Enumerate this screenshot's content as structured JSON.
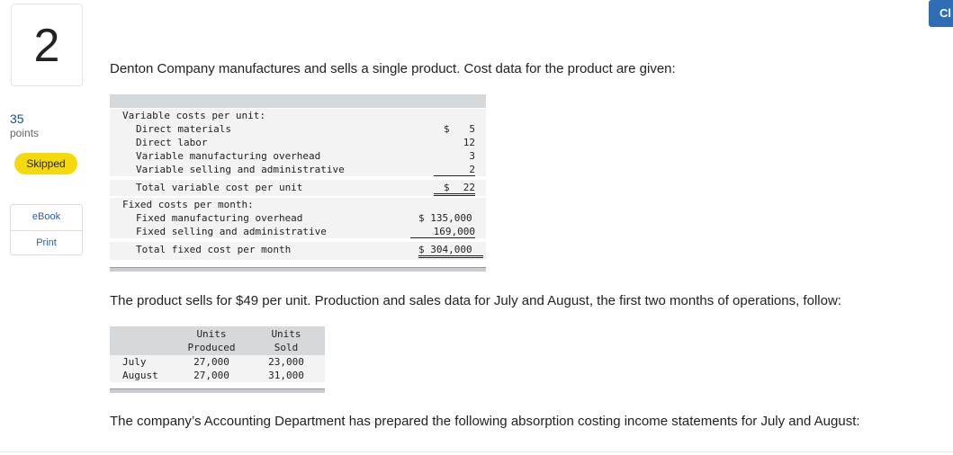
{
  "sidebar": {
    "question_number": "2",
    "points": "35",
    "points_label": "points",
    "status": "Skipped",
    "tools": [
      "eBook",
      "Print"
    ]
  },
  "top_button": "Cl",
  "intro": "Denton Company manufactures and sells a single product. Cost data for the product are given:",
  "cost_table": {
    "rows": [
      [
        "Variable costs per unit:"
      ],
      [
        "Direct materials",
        "$",
        "5"
      ],
      [
        "Direct labor",
        "12"
      ],
      [
        "Variable manufacturing overhead",
        "3"
      ],
      [
        "Variable selling and administrative",
        "2"
      ],
      [
        "Total variable cost per unit",
        "$",
        "22"
      ],
      [
        "Fixed costs per month:"
      ],
      [
        "Fixed manufacturing overhead",
        "$ 135,000"
      ],
      [
        "Fixed selling and administrative",
        "169,000"
      ],
      [
        "Total fixed cost per month",
        "$ 304,000"
      ]
    ]
  },
  "sales_text": "The product sells for $49 per unit. Production and sales data for July and August, the first two months of operations, follow:",
  "production_table": {
    "header": [
      [
        "Units",
        "Produced"
      ],
      [
        "Units",
        "Sold"
      ]
    ],
    "rows": [
      [
        "July",
        "27,000",
        "23,000"
      ],
      [
        "August",
        "27,000",
        "31,000"
      ]
    ]
  },
  "closing_text": "The company’s Accounting Department has prepared the following absorption costing income statements for July and August:"
}
